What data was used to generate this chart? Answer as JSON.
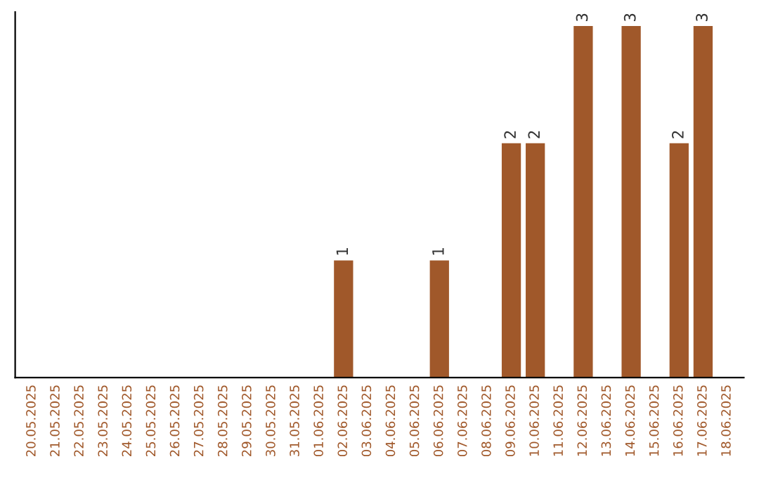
{
  "chart_data": {
    "type": "bar",
    "categories": [
      "20.05.2025",
      "21.05.2025",
      "22.05.2025",
      "23.05.2025",
      "24.05.2025",
      "25.05.2025",
      "26.05.2025",
      "27.05.2025",
      "28.05.2025",
      "29.05.2025",
      "30.05.2025",
      "31.05.2025",
      "01.06.2025",
      "02.06.2025",
      "03.06.2025",
      "04.06.2025",
      "05.06.2025",
      "06.06.2025",
      "07.06.2025",
      "08.06.2025",
      "09.06.2025",
      "10.06.2025",
      "11.06.2025",
      "12.06.2025",
      "13.06.2025",
      "14.06.2025",
      "15.06.2025",
      "16.06.2025",
      "17.06.2025",
      "18.06.2025"
    ],
    "values": [
      null,
      null,
      null,
      null,
      null,
      null,
      null,
      null,
      null,
      null,
      null,
      null,
      null,
      1,
      null,
      null,
      null,
      1,
      null,
      null,
      2,
      2,
      null,
      3,
      null,
      3,
      null,
      2,
      3,
      null
    ],
    "value_labels": [
      null,
      null,
      null,
      null,
      null,
      null,
      null,
      null,
      null,
      null,
      null,
      null,
      null,
      "1",
      null,
      null,
      null,
      "1",
      null,
      null,
      "2",
      "2",
      null,
      "3",
      null,
      "3",
      null,
      "2",
      "3",
      null
    ],
    "color": "#a0582a",
    "tick_labels": "x",
    "grid": false,
    "legend": false
  }
}
